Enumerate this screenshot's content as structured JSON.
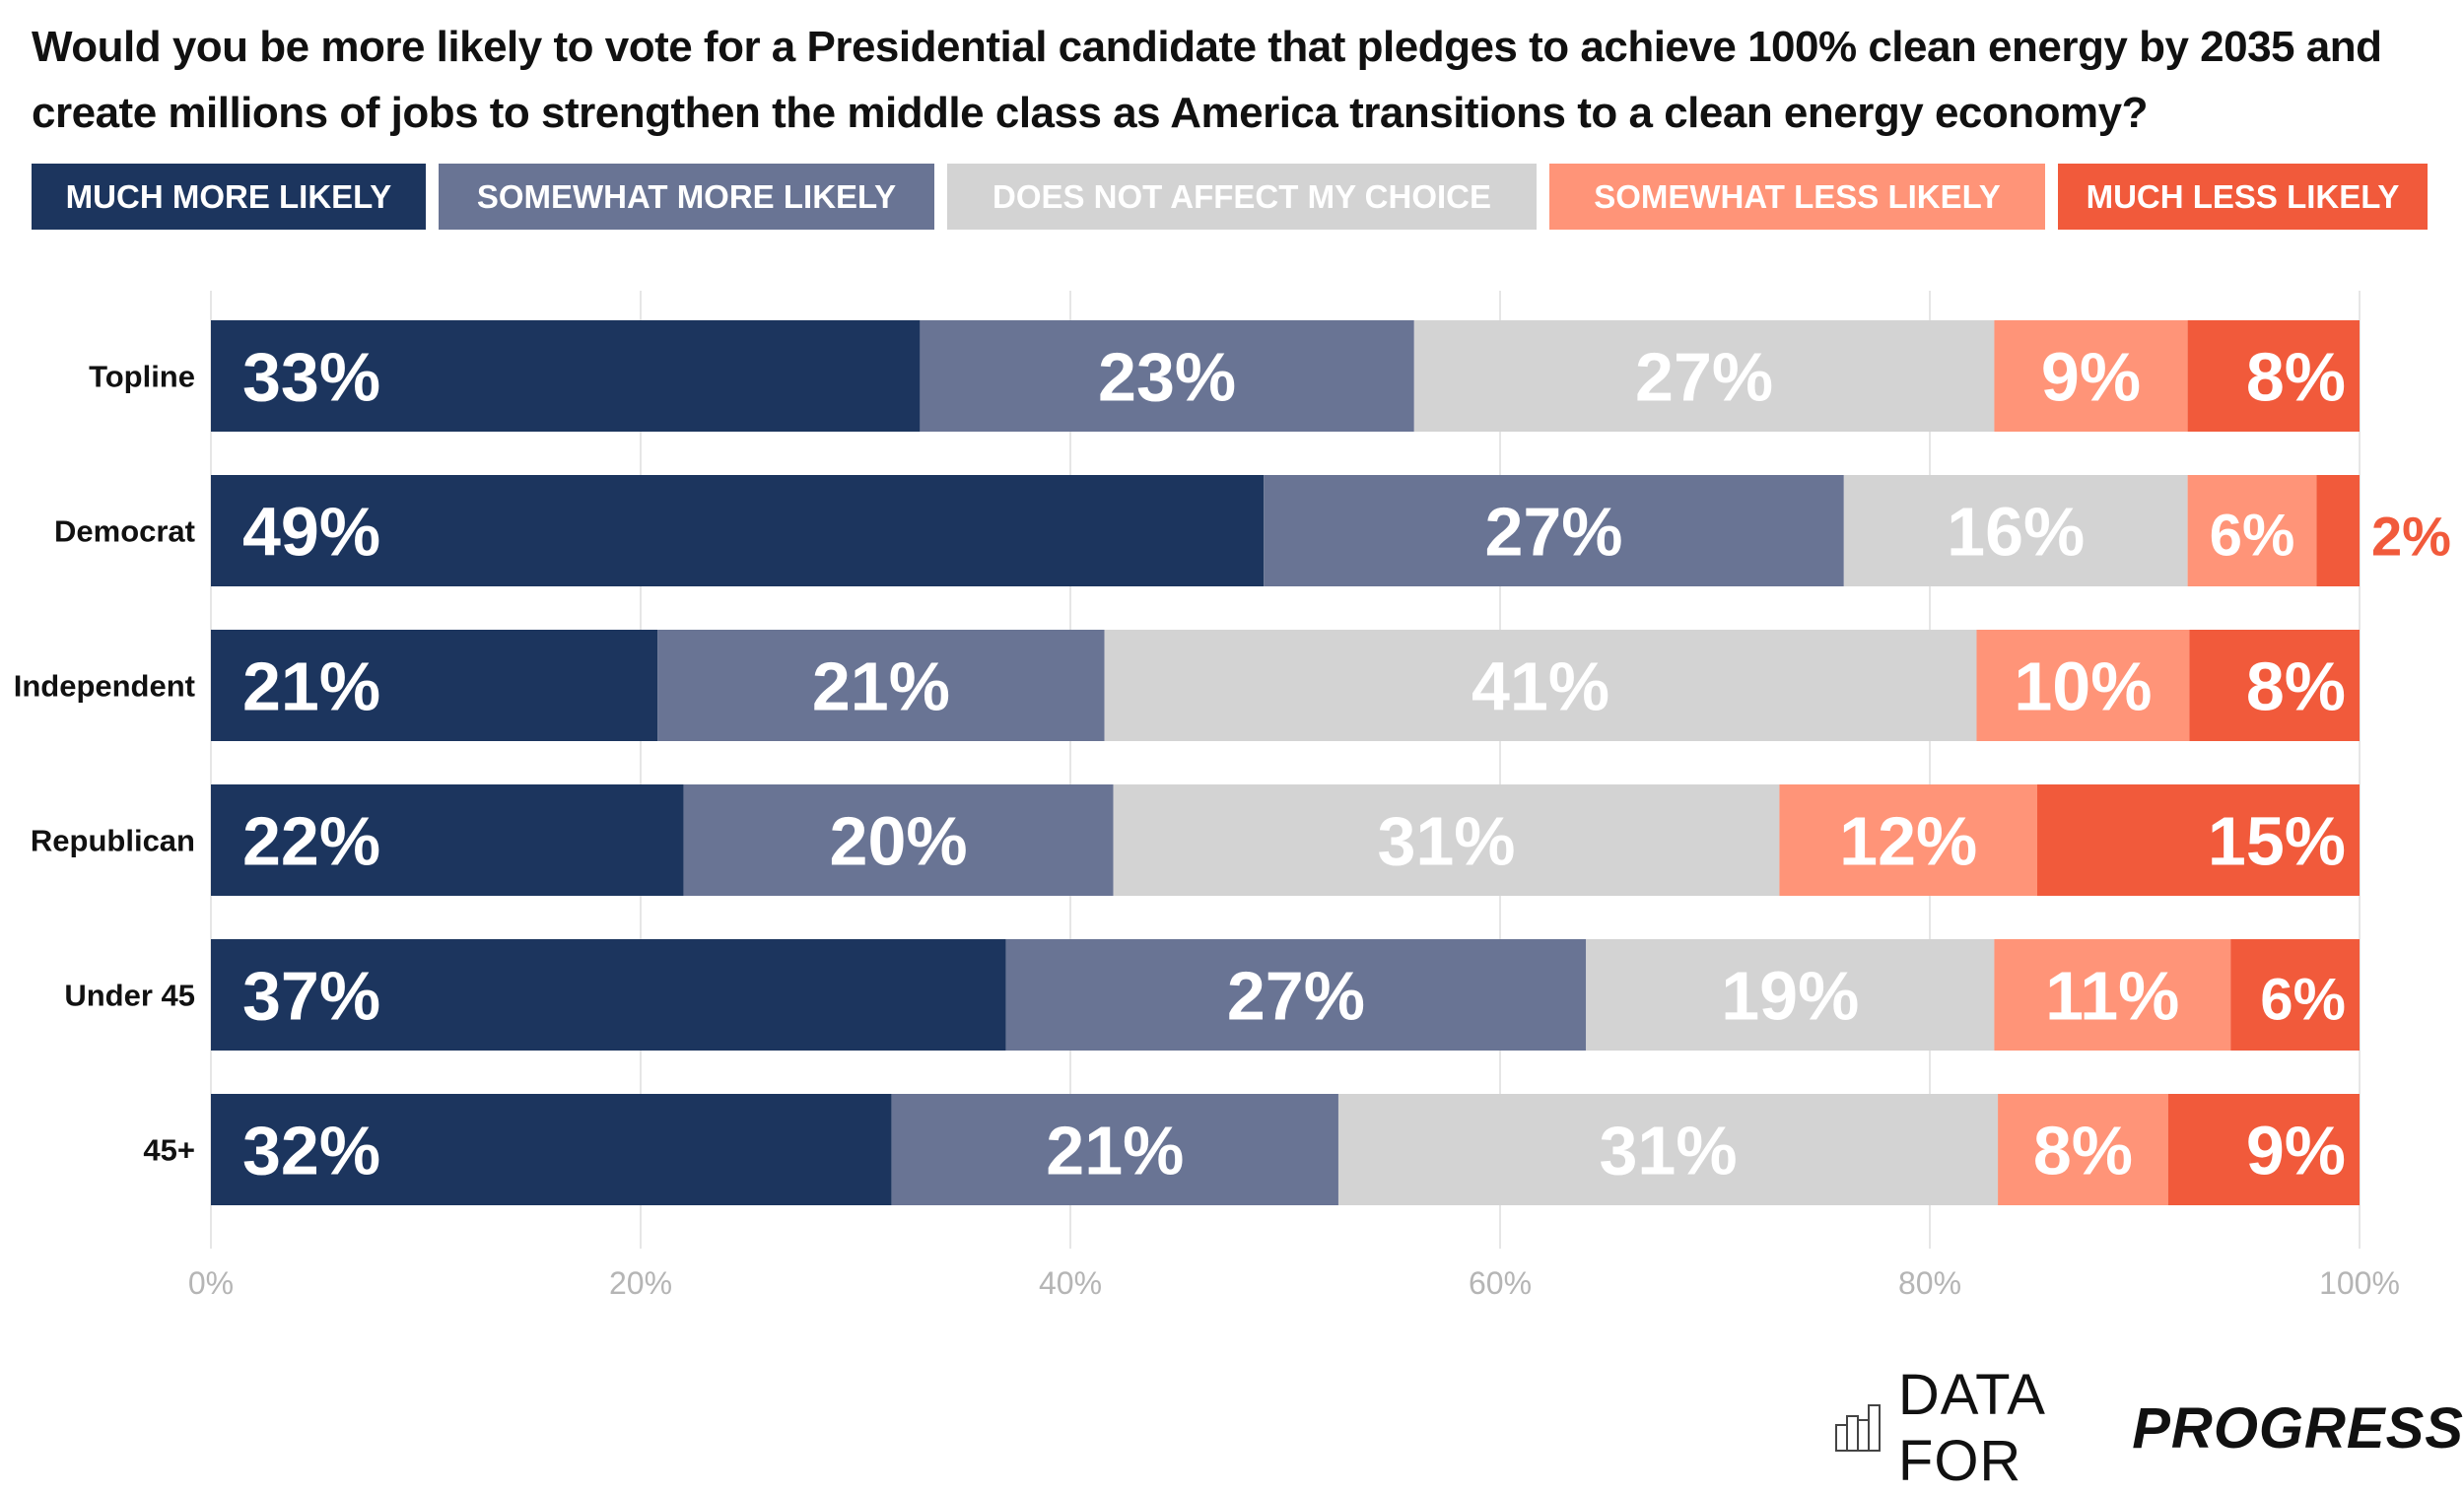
{
  "chart_data": {
    "type": "bar",
    "orientation": "horizontal",
    "stacked": true,
    "title": "Would you be more likely to vote for a Presidential candidate that pledges to achieve 100% clean energy by 2035 and create millions of jobs to strengthen the middle class as America transitions to a clean energy economy?",
    "categories": [
      "Topline",
      "Democrat",
      "Independent",
      "Republican",
      "Under 45",
      "45+"
    ],
    "series": [
      {
        "name": "MUCH MORE LIKELY",
        "color": "#1c355e",
        "values": [
          33,
          49,
          21,
          22,
          37,
          32
        ]
      },
      {
        "name": "SOMEWHAT MORE LIKELY",
        "color": "#697494",
        "values": [
          23,
          27,
          21,
          20,
          27,
          21
        ]
      },
      {
        "name": "DOES NOT AFFECT MY CHOICE",
        "color": "#d3d3d3",
        "values": [
          27,
          16,
          41,
          31,
          19,
          31
        ]
      },
      {
        "name": "SOMEWHAT LESS LIKELY",
        "color": "#ff9478",
        "values": [
          9,
          6,
          10,
          12,
          11,
          8
        ]
      },
      {
        "name": "MUCH LESS LIKELY",
        "color": "#f15a3b",
        "values": [
          8,
          2,
          8,
          15,
          6,
          9
        ]
      }
    ],
    "xlim": [
      0,
      100
    ],
    "xticks": [
      "0%",
      "20%",
      "40%",
      "60%",
      "80%",
      "100%"
    ],
    "grid": true,
    "legend_placement": "top"
  },
  "branding": {
    "logo_light": "DATA FOR",
    "logo_bold": "PROGRESS",
    "logo_icon": "bar-chart-icon"
  }
}
